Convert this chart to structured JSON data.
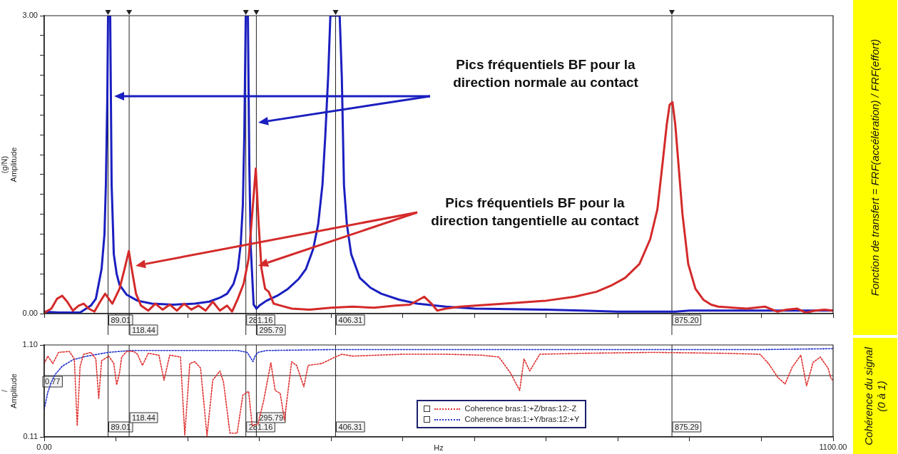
{
  "chart_data": [
    {
      "type": "line",
      "ylabel": "(g/N)\nAmplitude",
      "y2label": "Fonction de transfert = FRF(accélération) / FRF(effort)",
      "annotations": [
        "Pics fréquentiels BF pour la direction normale au contact",
        "Pics fréquentiels BF pour la direction tangentielle au contact"
      ],
      "xlim": [
        0,
        1100
      ],
      "xticks": [
        0,
        100,
        200,
        300,
        400,
        500,
        600,
        700,
        800,
        900,
        1000,
        1100
      ],
      "tick_labels": "y",
      "ylim": [
        0,
        3
      ],
      "yticks": [
        {
          "value": 0,
          "label": "0.00"
        },
        {
          "value": 0.2,
          "label": null
        },
        {
          "value": 0.4,
          "label": null
        },
        {
          "value": 0.6,
          "label": null
        },
        {
          "value": 0.8,
          "label": null
        },
        {
          "value": 1,
          "label": null
        },
        {
          "value": 1.2,
          "label": null
        },
        {
          "value": 1.4,
          "label": null
        },
        {
          "value": 1.6,
          "label": null
        },
        {
          "value": 1.8,
          "label": null
        },
        {
          "value": 2,
          "label": null
        },
        {
          "value": 2.2,
          "label": null
        },
        {
          "value": 2.4,
          "label": null
        },
        {
          "value": 2.6,
          "label": null
        },
        {
          "value": 2.8,
          "label": null
        },
        {
          "value": 3,
          "label": "3.00"
        }
      ],
      "marker": "none",
      "ref_lines": [
        {
          "axis": "x",
          "value": 89.01,
          "label": "89.01"
        },
        {
          "axis": "x",
          "value": 118.44,
          "label": "118.44"
        },
        {
          "axis": "x",
          "value": 281.16,
          "label": "281.16"
        },
        {
          "axis": "x",
          "value": 295.79,
          "label": "295.79"
        },
        {
          "axis": "x",
          "value": 406.31,
          "label": "406.31"
        },
        {
          "axis": "x",
          "value": 875.2,
          "label": "875.20"
        }
      ],
      "series": [
        {
          "color": "#d42a2a",
          "x": [
            0,
            10,
            18,
            25,
            32,
            40,
            48,
            55,
            62,
            70,
            78,
            85,
            95,
            105,
            112,
            118,
            122,
            128,
            135,
            145,
            155,
            165,
            175,
            185,
            195,
            205,
            215,
            225,
            235,
            245,
            255,
            262,
            270,
            278,
            285,
            290,
            295,
            299,
            303,
            308,
            313,
            320,
            330,
            345,
            370,
            400,
            430,
            460,
            490,
            510,
            530,
            540,
            548,
            560,
            580,
            620,
            660,
            700,
            740,
            770,
            790,
            810,
            830,
            845,
            855,
            862,
            868,
            872,
            876,
            880,
            885,
            890,
            898,
            908,
            919,
            930,
            940,
            960,
            980,
            1005,
            1022,
            1035,
            1050,
            1062,
            1075,
            1088,
            1100
          ],
          "values": [
            0.01,
            0.05,
            0.15,
            0.18,
            0.12,
            0.03,
            0.08,
            0.1,
            0.05,
            0.02,
            0.12,
            0.2,
            0.1,
            0.25,
            0.45,
            0.63,
            0.45,
            0.2,
            0.08,
            0.03,
            0.1,
            0.04,
            0.09,
            0.03,
            0.1,
            0.04,
            0.08,
            0.03,
            0.12,
            0.03,
            0.08,
            0.02,
            0.15,
            0.3,
            0.55,
            1.0,
            1.46,
            0.9,
            0.45,
            0.25,
            0.22,
            0.1,
            0.08,
            0.05,
            0.04,
            0.06,
            0.07,
            0.06,
            0.08,
            0.09,
            0.17,
            0.1,
            0.03,
            0.05,
            0.07,
            0.09,
            0.11,
            0.13,
            0.17,
            0.22,
            0.28,
            0.36,
            0.5,
            0.75,
            1.05,
            1.5,
            1.9,
            2.1,
            2.13,
            1.9,
            1.45,
            1.0,
            0.5,
            0.25,
            0.14,
            0.09,
            0.07,
            0.06,
            0.05,
            0.07,
            0.02,
            0.04,
            0.05,
            0.01,
            0.03,
            0.04,
            0.03
          ]
        },
        {
          "color": "#1a1fc0",
          "x": [
            0,
            20,
            50,
            65,
            72,
            80,
            84,
            86,
            88,
            89,
            92,
            94,
            97,
            101,
            105,
            115,
            130,
            150,
            180,
            210,
            230,
            245,
            255,
            264,
            270,
            274,
            277,
            279,
            281,
            284,
            286,
            288,
            292,
            296,
            300,
            310,
            325,
            340,
            355,
            365,
            375,
            382,
            388,
            392,
            396,
            399,
            412,
            415,
            418,
            422,
            428,
            440,
            455,
            470,
            495,
            520,
            560,
            600,
            650,
            700,
            750,
            800,
            850,
            880,
            900,
            950,
            1000,
            1050,
            1100
          ],
          "values": [
            0.02,
            0.01,
            0.01,
            0.08,
            0.15,
            0.45,
            0.8,
            1.3,
            2.2,
            3.0,
            3.0,
            1.3,
            0.6,
            0.4,
            0.29,
            0.19,
            0.13,
            0.1,
            0.09,
            0.1,
            0.12,
            0.16,
            0.2,
            0.3,
            0.45,
            0.7,
            1.1,
            1.8,
            3.0,
            3.0,
            1.5,
            0.67,
            0.09,
            0.05,
            0.08,
            0.13,
            0.18,
            0.25,
            0.35,
            0.45,
            0.65,
            0.9,
            1.3,
            1.8,
            2.4,
            3.0,
            3.0,
            2.37,
            1.29,
            0.9,
            0.6,
            0.36,
            0.26,
            0.2,
            0.14,
            0.1,
            0.07,
            0.05,
            0.045,
            0.04,
            0.03,
            0.02,
            0.02,
            0.02,
            0.03,
            0.03,
            0.03,
            0.03,
            0.03
          ]
        }
      ]
    },
    {
      "type": "line",
      "ylabel": "/\nAmplitude",
      "xlabel": "Hz",
      "y2label": "Cohérence du signal (0 à 1)",
      "xlim": [
        0,
        1100
      ],
      "xticks": [
        {
          "value": 0,
          "label": "0.00"
        },
        {
          "value": 100,
          "label": null
        },
        {
          "value": 200,
          "label": null
        },
        {
          "value": 300,
          "label": null
        },
        {
          "value": 400,
          "label": null
        },
        {
          "value": 500,
          "label": null
        },
        {
          "value": 600,
          "label": null
        },
        {
          "value": 700,
          "label": null
        },
        {
          "value": 800,
          "label": null
        },
        {
          "value": 900,
          "label": null
        },
        {
          "value": 1000,
          "label": null
        },
        {
          "value": 1100,
          "label": "1100.00"
        }
      ],
      "ylim": [
        0.11,
        1.1
      ],
      "yticks": [
        {
          "value": 0.11,
          "label": "0.11"
        },
        {
          "value": 1.1,
          "label": "1.10"
        }
      ],
      "legend": "bottom",
      "line_style": "dotted",
      "marker": "none",
      "ref_lines": [
        {
          "axis": "x",
          "value": 89.01,
          "label": "89.01"
        },
        {
          "axis": "x",
          "value": 118.44,
          "label": "118.44"
        },
        {
          "axis": "x",
          "value": 281.16,
          "label": "281.16"
        },
        {
          "axis": "x",
          "value": 295.79,
          "label": "295.79"
        },
        {
          "axis": "x",
          "value": 406.31,
          "label": "406.31"
        },
        {
          "axis": "x",
          "value": 875.29,
          "label": "875.29"
        },
        {
          "axis": "y",
          "value": 0.77,
          "label": "0.77"
        }
      ],
      "series": [
        {
          "name": "Coherence bras:1:+Z/bras:12:-Z",
          "color": "#e03030",
          "x": [
            0,
            5,
            12,
            20,
            35,
            42,
            46,
            50,
            55,
            65,
            72,
            76,
            80,
            90,
            97,
            101,
            105,
            108,
            115,
            125,
            130,
            137,
            145,
            160,
            167,
            175,
            190,
            196,
            203,
            210,
            218,
            227,
            235,
            245,
            250,
            259,
            269,
            277,
            285,
            290,
            298,
            306,
            316,
            322,
            329,
            335,
            345,
            352,
            362,
            368,
            387,
            403,
            415,
            430,
            500,
            560,
            610,
            634,
            650,
            663,
            669,
            677,
            691,
            750,
            850,
            950,
            998,
            1010,
            1023,
            1033,
            1043,
            1055,
            1063,
            1072,
            1082,
            1093,
            1097,
            1100
          ],
          "values": [
            0.9,
            0.98,
            0.9,
            1.02,
            1.03,
            0.95,
            0.23,
            0.87,
            1.0,
            1.02,
            0.95,
            0.52,
            0.93,
            0.98,
            0.9,
            0.67,
            0.8,
            0.97,
            1.03,
            1.03,
            1.0,
            0.88,
            1.01,
            0.99,
            0.72,
            0.99,
            0.97,
            0.13,
            0.9,
            0.92,
            0.85,
            0.12,
            0.72,
            0.82,
            0.7,
            0.15,
            0.15,
            0.56,
            0.6,
            0.23,
            0.25,
            0.5,
            0.91,
            0.61,
            0.58,
            0.29,
            0.92,
            0.88,
            0.65,
            0.88,
            0.9,
            0.96,
            1.0,
            0.98,
            1.0,
            1.0,
            0.99,
            0.97,
            0.8,
            0.61,
            0.95,
            0.82,
            1.0,
            1.01,
            1.02,
            1.01,
            1.0,
            0.9,
            0.75,
            0.68,
            0.86,
            0.99,
            0.66,
            0.91,
            0.97,
            0.85,
            0.74,
            0.72
          ]
        },
        {
          "name": "Coherence bras:1:+Y/bras:12:+Y",
          "color": "#2233cc",
          "x": [
            0,
            5,
            10,
            15,
            25,
            40,
            60,
            89,
            120,
            200,
            270,
            283,
            288,
            291,
            294,
            298,
            310,
            400,
            600,
            800,
            1000,
            1100
          ],
          "values": [
            0.41,
            0.59,
            0.7,
            0.78,
            0.87,
            0.94,
            0.98,
            1.02,
            1.04,
            1.04,
            1.04,
            1.02,
            0.96,
            0.92,
            0.98,
            1.02,
            1.04,
            1.05,
            1.05,
            1.05,
            1.05,
            1.06
          ]
        }
      ]
    }
  ]
}
